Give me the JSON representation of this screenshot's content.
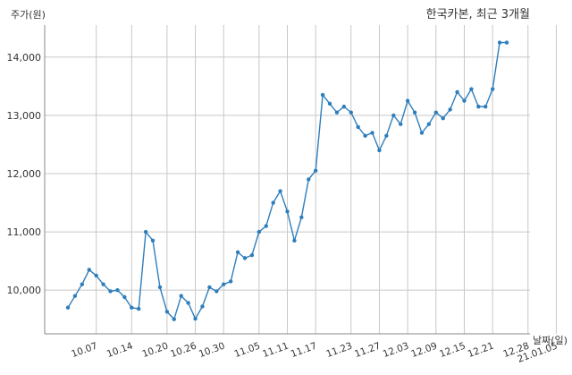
{
  "chart_data": {
    "type": "line",
    "title": "한국카본, 최근 3개월",
    "ylabel": "주가(원)",
    "xlabel": "날짜(일)",
    "ylim": [
      9250,
      14550
    ],
    "yticks": [
      10000,
      11000,
      12000,
      13000,
      14000
    ],
    "ytick_labels": [
      "10,000",
      "11,000",
      "12,000",
      "13,000",
      "14,000"
    ],
    "grid": true,
    "colors": {
      "line": "#2e7ebc",
      "grid": "#c8c8c8",
      "axis": "#888888"
    },
    "xtick_labels": [
      "10.07",
      "10.14",
      "10.20",
      "10.26",
      "10.30",
      "11.05",
      "11.11",
      "11.17",
      "11.23",
      "11.27",
      "12.03",
      "12.09",
      "12.15",
      "12.21",
      "12.28",
      "21.01.05"
    ],
    "xtick_indices": [
      4,
      9,
      14,
      18,
      22,
      27,
      31,
      35,
      40,
      44,
      48,
      52,
      56,
      60,
      65,
      69
    ],
    "series": [
      {
        "values": [
          9700,
          9900,
          10100,
          10350,
          10250,
          10100,
          9980,
          10000,
          9880,
          9700,
          9680,
          11000,
          10850,
          10050,
          9630,
          9500,
          9900,
          9780,
          9510,
          9720,
          10050,
          9980,
          10100,
          10150,
          10650,
          10550,
          10600,
          11000,
          11100,
          11500,
          11700,
          11350,
          10850,
          11250,
          11900,
          12050,
          13350,
          13200,
          13050,
          13150,
          13050,
          12800,
          12650,
          12700,
          12400,
          12650,
          13000,
          12850,
          13250,
          13050,
          12700,
          12850,
          13050,
          12950,
          13100,
          13400,
          13250,
          13450,
          13150,
          13150,
          13450,
          14250,
          14250
        ]
      }
    ]
  }
}
